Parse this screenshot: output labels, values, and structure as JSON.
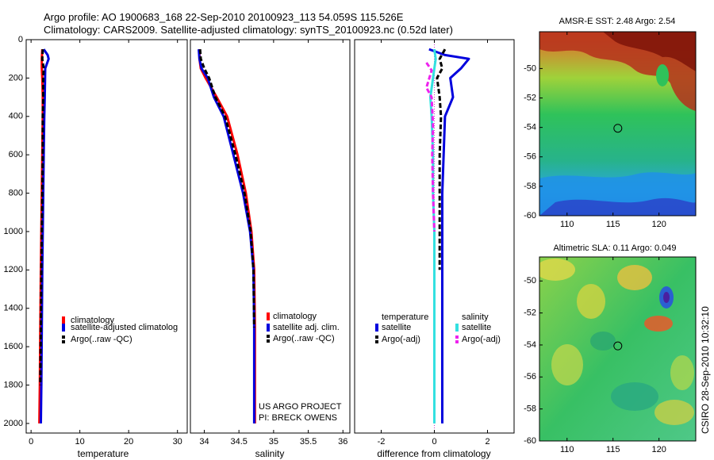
{
  "header": {
    "line1": "Argo profile: AO 1900683_168 22-Sep-2010 20100923_113 54.059S 115.526E",
    "line2": "Climatology: CARS2009. Satellite-adjusted climatology: synTS_20100923.nc (0.52d later)"
  },
  "side_label": "CSIRO 28-Sep-2010 10:32:10",
  "colors": {
    "red": "#ff0000",
    "blue": "#0000dd",
    "black": "#000000",
    "cyan": "#33e0e0",
    "magenta": "#ee22ee"
  },
  "chart_data": [
    {
      "id": "temperature",
      "type": "line",
      "xlabel": "temperature",
      "xlim": [
        -1,
        32
      ],
      "ylim": [
        0,
        2050
      ],
      "y_reversed": true,
      "xticks": [
        0,
        10,
        20,
        30
      ],
      "yticks": [
        0,
        200,
        400,
        600,
        800,
        1000,
        1200,
        1400,
        1600,
        1800,
        2000
      ],
      "legend": [
        "climatology",
        "satellite-adjusted climatolog",
        "Argo(..raw -QC)"
      ],
      "series": [
        {
          "name": "climatology",
          "color": "red",
          "style": "solid",
          "x": [
            2.3,
            2.2,
            2.2,
            2.3,
            2.4,
            2.4,
            2.3,
            2.2,
            2.1,
            2.0,
            1.9,
            1.8,
            1.7
          ],
          "y": [
            50,
            100,
            150,
            200,
            300,
            400,
            600,
            800,
            1000,
            1200,
            1500,
            1800,
            2000
          ]
        },
        {
          "name": "satellite-adjusted climatolog",
          "color": "blue",
          "style": "solid",
          "x": [
            2.6,
            3.4,
            3.6,
            2.9,
            2.8,
            2.7,
            2.6,
            2.5,
            2.4,
            2.3,
            2.2,
            2.1,
            2.0
          ],
          "y": [
            50,
            80,
            100,
            150,
            300,
            400,
            600,
            800,
            1000,
            1200,
            1500,
            1800,
            2000
          ]
        },
        {
          "name": "Argo(..raw -QC)",
          "color": "black",
          "style": "dashed",
          "x": [
            2.4,
            2.3,
            2.6,
            2.5,
            2.5,
            2.4,
            2.4,
            2.3,
            2.2,
            2.1,
            2.0,
            1.9
          ],
          "y": [
            50,
            100,
            150,
            200,
            300,
            400,
            600,
            800,
            1000,
            1200,
            1500,
            1800
          ]
        }
      ]
    },
    {
      "id": "salinity",
      "type": "line",
      "xlabel": "salinity",
      "xlim": [
        33.8,
        36.1
      ],
      "ylim": [
        0,
        2050
      ],
      "y_reversed": true,
      "xticks": [
        34,
        34.5,
        35,
        35.5,
        36
      ],
      "yticks": [
        0,
        200,
        400,
        600,
        800,
        1000,
        1200,
        1400,
        1600,
        1800,
        2000
      ],
      "legend": [
        "climatology",
        "satellite adj. clim.",
        "Argo(..raw -QC)"
      ],
      "annotations": [
        "US ARGO PROJECT",
        "PI: BRECK OWENS"
      ],
      "series": [
        {
          "name": "climatology",
          "color": "red",
          "style": "solid",
          "x": [
            33.93,
            33.93,
            33.95,
            34.02,
            34.18,
            34.33,
            34.48,
            34.6,
            34.68,
            34.72,
            34.73,
            34.73
          ],
          "y": [
            50,
            100,
            150,
            200,
            300,
            400,
            600,
            800,
            1000,
            1200,
            1500,
            2000
          ]
        },
        {
          "name": "satellite adj. clim.",
          "color": "blue",
          "style": "solid",
          "x": [
            33.92,
            33.93,
            33.96,
            34.05,
            34.14,
            34.28,
            34.42,
            34.56,
            34.66,
            34.71,
            34.72,
            34.72
          ],
          "y": [
            50,
            100,
            150,
            200,
            300,
            400,
            600,
            800,
            1000,
            1200,
            1500,
            2000
          ]
        },
        {
          "name": "Argo(..raw -QC)",
          "color": "black",
          "style": "dashed",
          "x": [
            33.94,
            33.95,
            34.0,
            34.07,
            34.16,
            34.3,
            34.45,
            34.58,
            34.67,
            34.71,
            34.72
          ],
          "y": [
            50,
            100,
            150,
            200,
            300,
            400,
            600,
            800,
            1000,
            1200,
            1500
          ]
        }
      ]
    },
    {
      "id": "difference",
      "type": "line",
      "xlabel": "difference from climatology",
      "xlim": [
        -3,
        3
      ],
      "ylim": [
        0,
        2050
      ],
      "y_reversed": true,
      "xticks": [
        -2,
        0,
        2
      ],
      "yticks": [
        0,
        200,
        400,
        600,
        800,
        1000,
        1200,
        1400,
        1600,
        1800,
        2000
      ],
      "legend_groups": [
        {
          "title": "temperature",
          "items": [
            "satellite",
            "Argo(-adj)"
          ]
        },
        {
          "title": "salinity",
          "items": [
            "satellite",
            "Argo(-adj)"
          ]
        }
      ],
      "series": [
        {
          "name": "satellite",
          "group": "temperature",
          "color": "blue",
          "style": "solid",
          "x": [
            -0.2,
            0.4,
            1.3,
            1.0,
            0.6,
            0.7,
            0.4,
            0.35,
            0.3,
            0.3,
            0.3,
            0.3,
            0.3
          ],
          "y": [
            50,
            80,
            100,
            150,
            200,
            300,
            400,
            600,
            800,
            1000,
            1200,
            1500,
            2000
          ]
        },
        {
          "name": "Argo(-adj)",
          "group": "temperature",
          "color": "black",
          "style": "dashed",
          "x": [
            0.4,
            0.2,
            0.3,
            0.1,
            0.2,
            0.25,
            0.2,
            0.2,
            0.2,
            0.2
          ],
          "y": [
            50,
            100,
            150,
            200,
            300,
            400,
            600,
            800,
            1000,
            1200
          ]
        },
        {
          "name": "satellite",
          "group": "salinity",
          "color": "cyan",
          "style": "solid",
          "x": [
            0.0,
            0.05,
            -0.05,
            -0.15,
            -0.1,
            -0.05,
            -0.05,
            0.0,
            0.0,
            0.0
          ],
          "y": [
            50,
            100,
            200,
            300,
            400,
            600,
            800,
            1000,
            1500,
            2000
          ]
        },
        {
          "name": "Argo(-adj)",
          "group": "salinity",
          "color": "magenta",
          "style": "dashed",
          "x": [
            -0.3,
            -0.1,
            -0.3,
            -0.1,
            -0.05,
            -0.08,
            -0.05,
            0.0
          ],
          "y": [
            120,
            160,
            250,
            300,
            450,
            600,
            800,
            1000
          ]
        }
      ]
    },
    {
      "id": "sst_map",
      "type": "heatmap",
      "title": "AMSR-E SST: 2.48 Argo: 2.54",
      "xlim": [
        107,
        124
      ],
      "ylim": [
        -60,
        -47.5
      ],
      "xticks": [
        110,
        115,
        120
      ],
      "yticks": [
        -50,
        -52,
        -54,
        -56,
        -58,
        -60
      ],
      "marker": {
        "lon": 115.526,
        "lat": -54.059
      }
    },
    {
      "id": "sla_map",
      "type": "heatmap",
      "title": "Altimetric SLA: 0.11 Argo: 0.049",
      "xlim": [
        107,
        124
      ],
      "ylim": [
        -60,
        -48.5
      ],
      "xticks": [
        110,
        115,
        120
      ],
      "yticks": [
        -50,
        -52,
        -54,
        -56,
        -58,
        -60
      ],
      "marker": {
        "lon": 115.526,
        "lat": -54.059
      }
    }
  ]
}
